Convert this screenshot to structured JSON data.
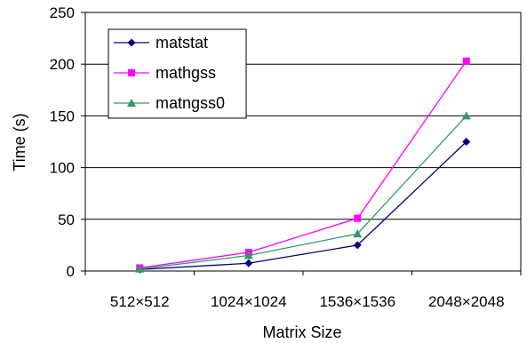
{
  "chart_data": {
    "type": "line",
    "categories": [
      "512×512",
      "1024×1024",
      "1536×1536",
      "2048×2048"
    ],
    "xlabel": "Matrix Size",
    "ylabel": "Time (s)",
    "ylim": [
      0,
      250
    ],
    "yticks": [
      0,
      50,
      100,
      150,
      200,
      250
    ],
    "grid": "horizontal",
    "legend_position": "top-left",
    "series": [
      {
        "name": "matstat",
        "values": [
          1.5,
          7.5,
          25,
          125
        ],
        "color": "#000080",
        "marker": "diamond"
      },
      {
        "name": "mathgss",
        "values": [
          3,
          18,
          51,
          203
        ],
        "color": "#ff00ff",
        "marker": "square"
      },
      {
        "name": "matngss0",
        "values": [
          2,
          15,
          36,
          150
        ],
        "color": "#339966",
        "marker": "triangle"
      }
    ]
  }
}
